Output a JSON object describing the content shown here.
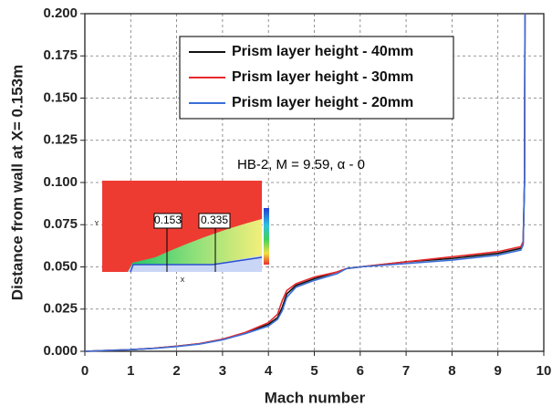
{
  "chart_data": {
    "type": "line",
    "xlabel": "Mach number",
    "ylabel": "Distance from wall at X= 0.153m",
    "annotation": "HB-2, M = 9.59, α - 0",
    "inset_labels": [
      "0.153",
      "0.335"
    ],
    "inset_axis_labels": {
      "x": "X",
      "y": "Y"
    },
    "x": [
      0,
      0.5,
      1,
      1.5,
      2,
      2.5,
      3,
      3.5,
      4,
      4.2,
      4.3,
      4.4,
      4.6,
      5,
      5.5,
      5.7,
      6,
      7,
      8,
      9,
      9.5,
      9.55,
      9.58,
      9.59
    ],
    "series": [
      {
        "name": "Prism layer height - 40mm",
        "color": "#111111",
        "values": [
          0,
          0.0005,
          0.001,
          0.0018,
          0.003,
          0.0045,
          0.007,
          0.011,
          0.016,
          0.02,
          0.026,
          0.034,
          0.039,
          0.043,
          0.047,
          0.049,
          0.05,
          0.053,
          0.055,
          0.058,
          0.061,
          0.064,
          0.1,
          0.2
        ]
      },
      {
        "name": "Prism layer height - 30mm",
        "color": "#e8282a",
        "values": [
          0,
          0.0005,
          0.001,
          0.0018,
          0.003,
          0.0046,
          0.0072,
          0.0112,
          0.017,
          0.022,
          0.03,
          0.036,
          0.04,
          0.044,
          0.047,
          0.049,
          0.05,
          0.053,
          0.056,
          0.059,
          0.062,
          0.065,
          0.1,
          0.2
        ]
      },
      {
        "name": "Prism layer height - 20mm",
        "color": "#3b6fd8",
        "values": [
          0,
          0.0005,
          0.001,
          0.0017,
          0.0028,
          0.0043,
          0.0068,
          0.0105,
          0.015,
          0.019,
          0.024,
          0.032,
          0.038,
          0.042,
          0.046,
          0.049,
          0.05,
          0.052,
          0.054,
          0.057,
          0.06,
          0.063,
          0.1,
          0.2
        ]
      }
    ],
    "xlim": [
      0,
      10
    ],
    "xticks": [
      0,
      1,
      2,
      3,
      4,
      5,
      6,
      7,
      8,
      9,
      10
    ],
    "ylim": [
      0,
      0.2
    ],
    "yticks": [
      {
        "value": 0,
        "label": "0.000"
      },
      {
        "value": 0.025,
        "label": "0.025"
      },
      {
        "value": 0.05,
        "label": "0.050"
      },
      {
        "value": 0.075,
        "label": "0.075"
      },
      {
        "value": 0.1,
        "label": "0.100"
      },
      {
        "value": 0.125,
        "label": "0.125"
      },
      {
        "value": 0.15,
        "label": "0.150"
      },
      {
        "value": 0.175,
        "label": "0.175"
      },
      {
        "value": 0.2,
        "label": "0.200"
      }
    ],
    "grid": true
  }
}
